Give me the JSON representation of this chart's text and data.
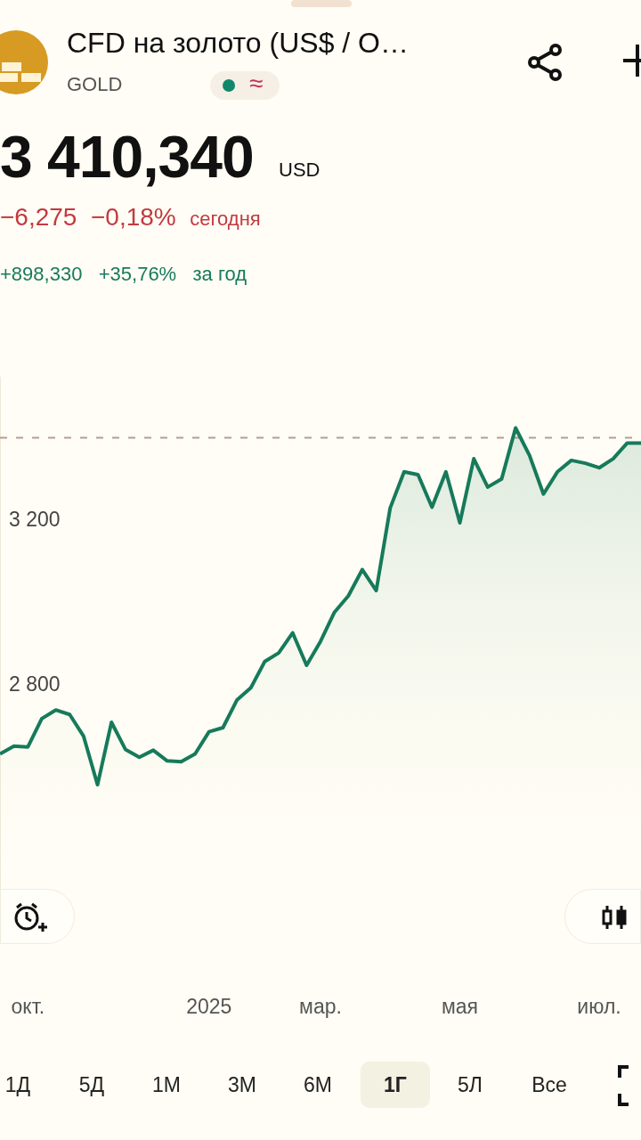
{
  "chart_data": {
    "type": "area",
    "title": "CFD на золото (US$ / O…",
    "subtitle": "GOLD",
    "annotations": [
      "3 410,340",
      "USD",
      "−6,275",
      "−0,18%",
      "сегодня",
      "+898,330",
      "+35,76%",
      "за год",
      "≈",
      "1Д",
      "5Д",
      "1М",
      "3М",
      "6М",
      "1Г",
      "5Л",
      "Все"
    ],
    "categories": [
      null,
      null,
      "окт.",
      null,
      null,
      null,
      null,
      null,
      null,
      null,
      null,
      null,
      null,
      null,
      null,
      "2025",
      null,
      null,
      null,
      null,
      null,
      null,
      null,
      "мар.",
      null,
      null,
      null,
      null,
      null,
      null,
      null,
      null,
      null,
      "мая",
      null,
      null,
      null,
      null,
      null,
      null,
      null,
      null,
      null,
      "июл.",
      null,
      null,
      null
    ],
    "series": [
      {
        "color": "#167a5b",
        "values": [
          2633,
          2652,
          2650,
          2719,
          2740,
          2729,
          2676,
          2558,
          2710,
          2644,
          2625,
          2642,
          2616,
          2614,
          2633,
          2687,
          2697,
          2764,
          2794,
          2858,
          2879,
          2928,
          2849,
          2907,
          2978,
          3018,
          3082,
          3031,
          3232,
          3320,
          3313,
          3234,
          3320,
          3196,
          3352,
          3283,
          3303,
          3427,
          3360,
          3266,
          3320,
          3348,
          3341,
          3330,
          3352,
          3390,
          3390
        ]
      }
    ],
    "ylim": [
      2300,
      3550
    ],
    "yticks": [
      {
        "value": 3200,
        "label": "3 200"
      },
      {
        "value": 2800,
        "label": "2 800"
      }
    ],
    "ref_lines": [
      {
        "axis": "y",
        "value": 3403,
        "color": "#b59f8f",
        "line_style": "dashed"
      }
    ],
    "grid": false,
    "legend": false
  }
}
